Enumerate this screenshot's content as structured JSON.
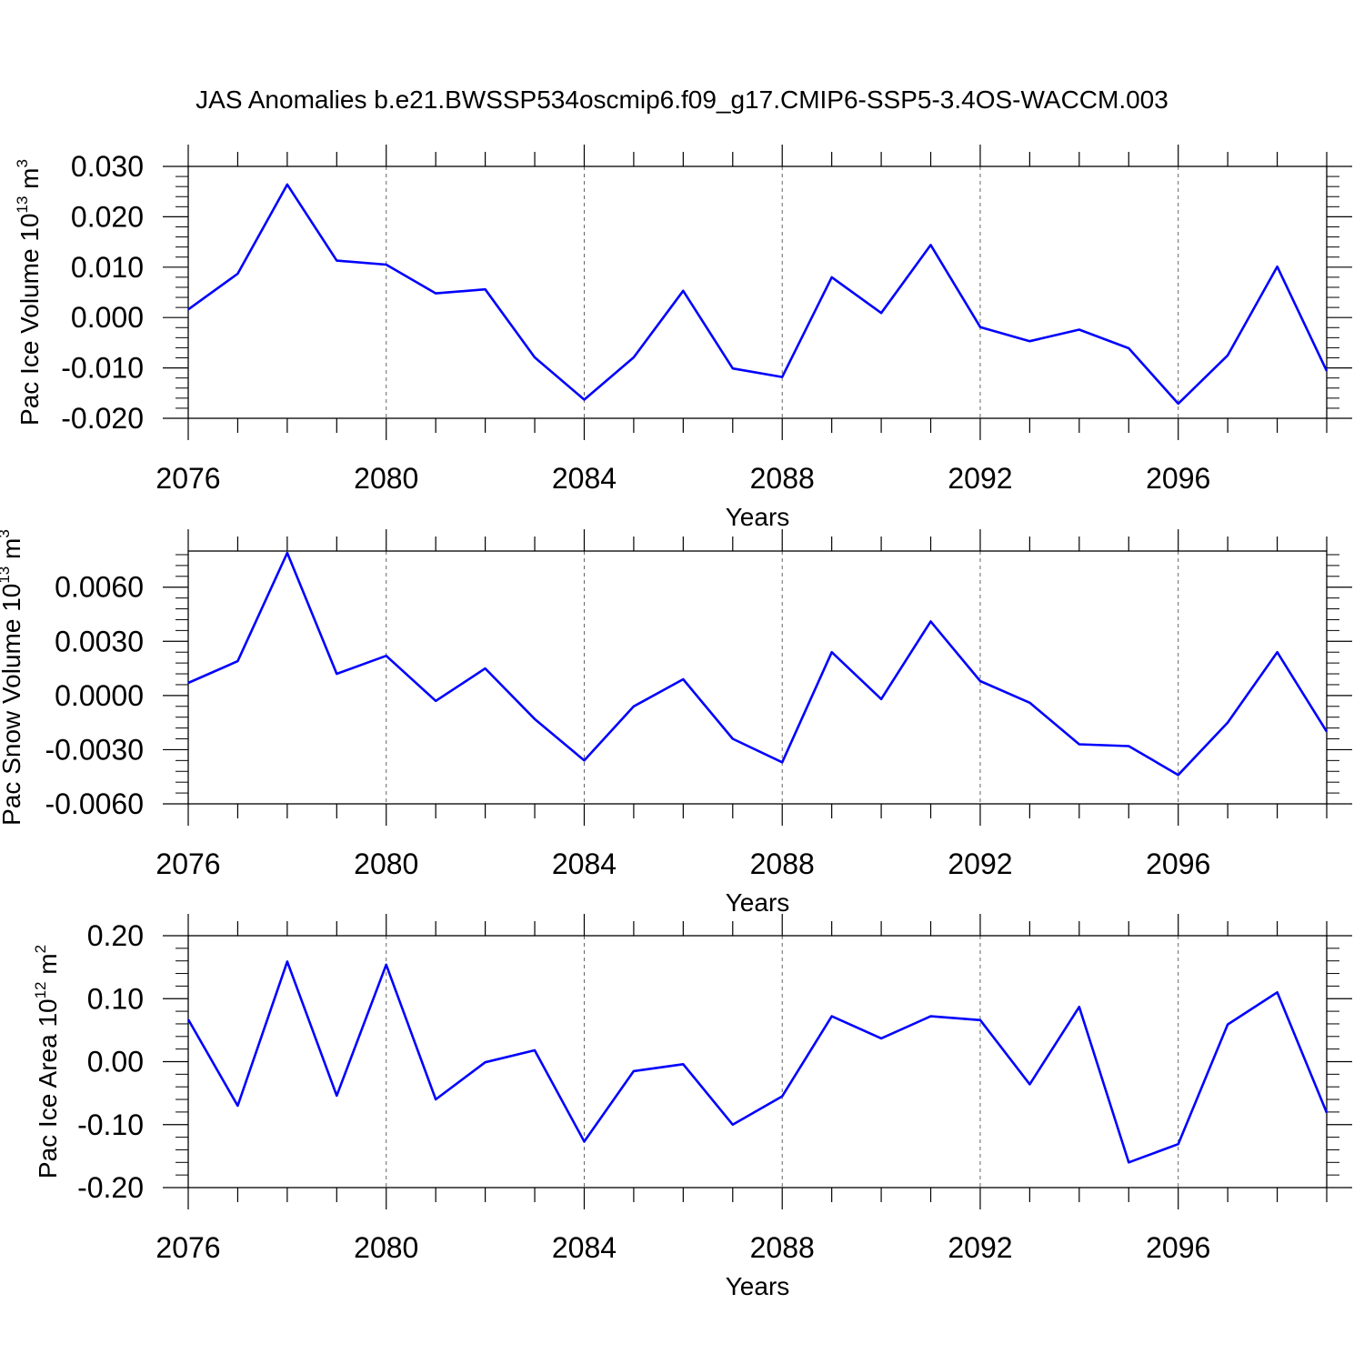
{
  "title": "JAS Anomalies b.e21.BWSSP534oscmip6.f09_g17.CMIP6-SSP5-3.4OS-WACCM.003",
  "colors": {
    "line": "#0000ff",
    "axis": "#000000",
    "grid": "#000000",
    "background": "#ffffff"
  },
  "chart_data": [
    {
      "type": "line",
      "ylabel": "Pac Ice Volume 10",
      "ylabel_exp": "13",
      "ylabel_unit": "m",
      "ylabel_unit_exp": "3",
      "xlabel": "Years",
      "xlim": [
        2076,
        2099
      ],
      "ylim": [
        -0.02,
        0.03
      ],
      "x_ticks": [
        2076,
        2080,
        2084,
        2088,
        2092,
        2096
      ],
      "x_tick_labels": [
        "2076",
        "2080",
        "2084",
        "2088",
        "2092",
        "2096"
      ],
      "y_ticks": [
        -0.02,
        -0.01,
        0.0,
        0.01,
        0.02,
        0.03
      ],
      "y_tick_labels": [
        "-0.020",
        "-0.010",
        "0.000",
        "0.010",
        "0.020",
        "0.030"
      ],
      "grid": "vertical dashed at major x ticks",
      "x": [
        2076,
        2077,
        2078,
        2079,
        2080,
        2081,
        2082,
        2083,
        2084,
        2085,
        2086,
        2087,
        2088,
        2089,
        2090,
        2091,
        2092,
        2093,
        2094,
        2095,
        2096,
        2097,
        2098,
        2099
      ],
      "values": [
        0.0016,
        0.0087,
        0.0264,
        0.0113,
        0.0105,
        0.0048,
        0.0056,
        -0.0079,
        -0.0163,
        -0.0079,
        0.0053,
        -0.0101,
        -0.0118,
        0.008,
        0.0009,
        0.0144,
        -0.0019,
        -0.0047,
        -0.0024,
        -0.0061,
        -0.0171,
        -0.0075,
        0.0101,
        -0.0106
      ]
    },
    {
      "type": "line",
      "ylabel": "Pac Snow Volume 10",
      "ylabel_exp": "13",
      "ylabel_unit": "m",
      "ylabel_unit_exp": "3",
      "xlabel": "Years",
      "xlim": [
        2076,
        2099
      ],
      "ylim": [
        -0.006,
        0.008
      ],
      "x_ticks": [
        2076,
        2080,
        2084,
        2088,
        2092,
        2096
      ],
      "x_tick_labels": [
        "2076",
        "2080",
        "2084",
        "2088",
        "2092",
        "2096"
      ],
      "y_ticks": [
        -0.006,
        -0.003,
        0.0,
        0.003,
        0.006
      ],
      "y_tick_labels": [
        "-0.0060",
        "-0.0030",
        "0.0000",
        "0.0030",
        "0.0060"
      ],
      "grid": "vertical dashed at major x ticks",
      "x": [
        2076,
        2077,
        2078,
        2079,
        2080,
        2081,
        2082,
        2083,
        2084,
        2085,
        2086,
        2087,
        2088,
        2089,
        2090,
        2091,
        2092,
        2093,
        2094,
        2095,
        2096,
        2097,
        2098,
        2099
      ],
      "values": [
        0.0007,
        0.0019,
        0.0079,
        0.0012,
        0.0022,
        -0.0003,
        0.0015,
        -0.0013,
        -0.0036,
        -0.0006,
        0.0009,
        -0.0024,
        -0.0037,
        0.0024,
        -0.0002,
        0.0041,
        0.0008,
        -0.0004,
        -0.0027,
        -0.0028,
        -0.0044,
        -0.0015,
        0.0024,
        -0.002
      ]
    },
    {
      "type": "line",
      "ylabel": "Pac Ice Area 10",
      "ylabel_exp": "12",
      "ylabel_unit": "m",
      "ylabel_unit_exp": "2",
      "xlabel": "Years",
      "xlim": [
        2076,
        2099
      ],
      "ylim": [
        -0.2,
        0.2
      ],
      "x_ticks": [
        2076,
        2080,
        2084,
        2088,
        2092,
        2096
      ],
      "x_tick_labels": [
        "2076",
        "2080",
        "2084",
        "2088",
        "2092",
        "2096"
      ],
      "y_ticks": [
        -0.2,
        -0.1,
        0.0,
        0.1,
        0.2
      ],
      "y_tick_labels": [
        "-0.20",
        "-0.10",
        "0.00",
        "0.10",
        "0.20"
      ],
      "grid": "vertical dashed at major x ticks",
      "x": [
        2076,
        2077,
        2078,
        2079,
        2080,
        2081,
        2082,
        2083,
        2084,
        2085,
        2086,
        2087,
        2088,
        2089,
        2090,
        2091,
        2092,
        2093,
        2094,
        2095,
        2096,
        2097,
        2098,
        2099
      ],
      "values": [
        0.067,
        -0.07,
        0.159,
        -0.054,
        0.154,
        -0.06,
        -0.001,
        0.018,
        -0.127,
        -0.015,
        -0.004,
        -0.1,
        -0.055,
        0.072,
        0.037,
        0.072,
        0.066,
        -0.036,
        0.087,
        -0.16,
        -0.131,
        0.059,
        0.11,
        -0.081
      ]
    }
  ]
}
